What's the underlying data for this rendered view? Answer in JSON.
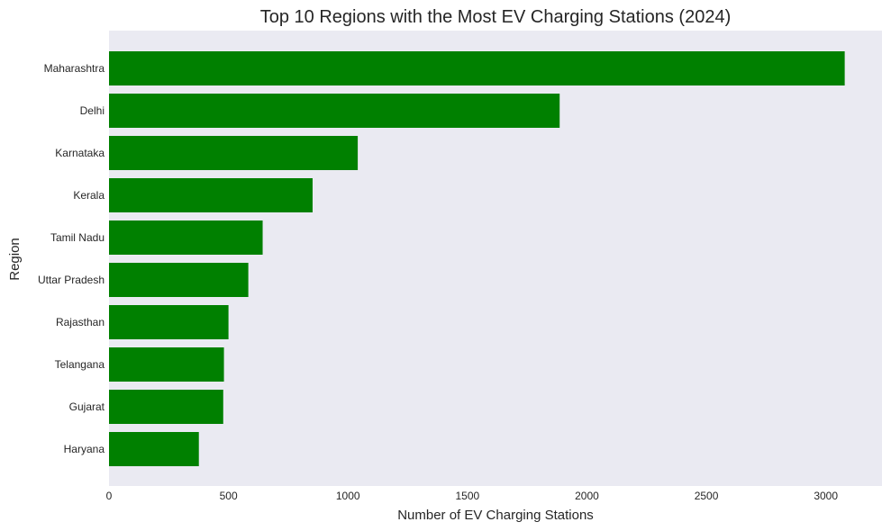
{
  "chart_data": {
    "type": "bar",
    "orientation": "horizontal",
    "title": "Top 10 Regions with the Most EV Charging Stations (2024)",
    "xlabel": "Number of EV Charging Stations",
    "ylabel": "Region",
    "categories": [
      "Maharashtra",
      "Delhi",
      "Karnataka",
      "Kerala",
      "Tamil Nadu",
      "Uttar Pradesh",
      "Rajasthan",
      "Telangana",
      "Gujarat",
      "Haryana"
    ],
    "values": [
      3079,
      1886,
      1041,
      852,
      643,
      583,
      500,
      481,
      478,
      376
    ],
    "xlim": [
      0,
      3235
    ],
    "xticks": [
      0,
      500,
      1000,
      1500,
      2000,
      2500,
      3000
    ],
    "grid": false,
    "bar_color": "#008000",
    "plot_background": "#eaeaf2"
  }
}
